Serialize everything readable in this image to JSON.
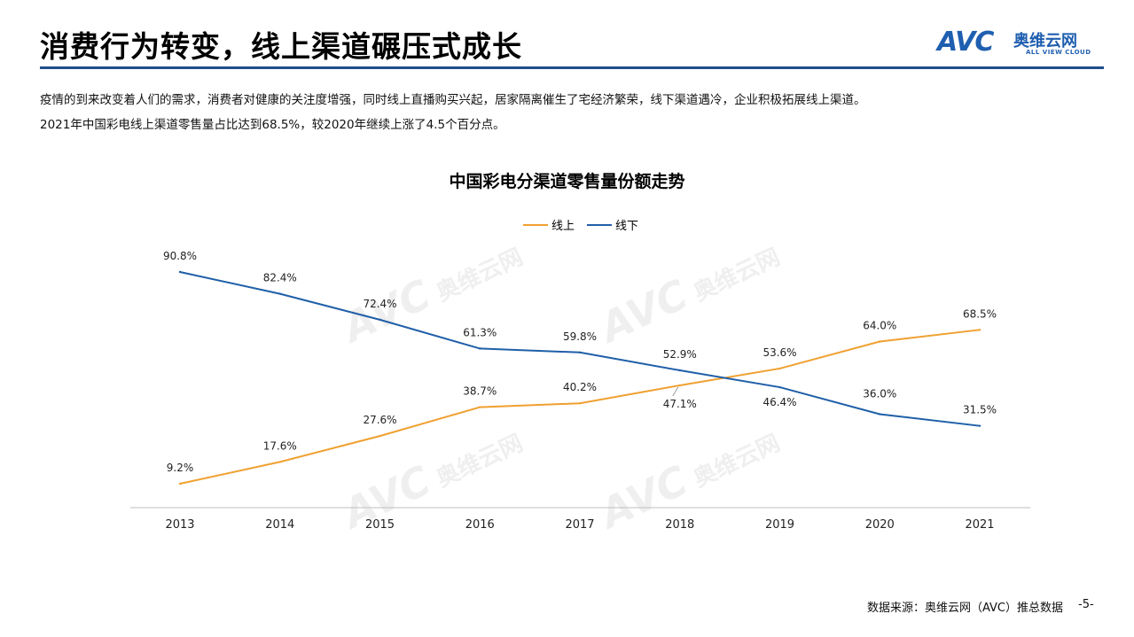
{
  "header": {
    "title": "消费行为转变，线上渠道碾压式成长",
    "logo_mark": "AVC",
    "logo_cn": "奥维云网",
    "logo_en": "ALL VIEW CLOUD"
  },
  "description": {
    "line1": "疫情的到来改变着人们的需求，消费者对健康的关注度增强，同时线上直播购买兴起，居家隔离催生了宅经济繁荣，线下渠道遇冷，企业积极拓展线上渠道。",
    "line2": "2021年中国彩电线上渠道零售量占比达到68.5%，较2020年继续上涨了4.5个百分点。"
  },
  "chart_data": {
    "type": "line",
    "title": "中国彩电分渠道零售量份额走势",
    "categories": [
      "2013",
      "2014",
      "2015",
      "2016",
      "2017",
      "2018",
      "2019",
      "2020",
      "2021"
    ],
    "series": [
      {
        "name": "线上",
        "color": "#f0a030",
        "values": [
          9.2,
          17.6,
          27.6,
          38.7,
          40.2,
          47.1,
          53.6,
          64.0,
          68.5
        ],
        "labels": [
          "9.2%",
          "17.6%",
          "27.6%",
          "38.7%",
          "40.2%",
          "47.1%",
          "53.6%",
          "64.0%",
          "68.5%"
        ]
      },
      {
        "name": "线下",
        "color": "#1f5fa8",
        "values": [
          90.8,
          82.4,
          72.4,
          61.3,
          59.8,
          52.9,
          46.4,
          36.0,
          31.5
        ],
        "labels": [
          "90.8%",
          "82.4%",
          "72.4%",
          "61.3%",
          "59.8%",
          "52.9%",
          "46.4%",
          "36.0%",
          "31.5%"
        ]
      }
    ],
    "legend_position": "top-center",
    "grid": false
  },
  "footer": {
    "source": "数据来源：奥维云网（AVC）推总数据",
    "page": "-5-"
  }
}
